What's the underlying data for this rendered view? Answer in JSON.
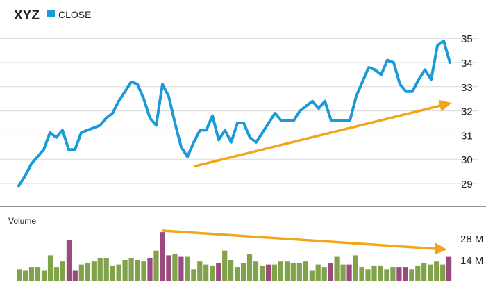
{
  "colors": {
    "close_line": "#1a9ad6",
    "volume_up": "#7fa24a",
    "volume_down": "#9a4a7c",
    "trend": "#f2a516",
    "grid": "#d9d9d9",
    "divider": "#555555",
    "text": "#222222"
  },
  "chart_data": [
    {
      "type": "line",
      "title": "XYZ",
      "legend": "top-left",
      "grid": true,
      "ylim": [
        28.3,
        35.4
      ],
      "y_ticks": [
        29,
        30,
        31,
        32,
        33,
        34,
        35
      ],
      "series": [
        {
          "name": "CLOSE",
          "color": "#1a9ad6",
          "values": [
            28.9,
            29.3,
            29.8,
            30.1,
            30.4,
            31.1,
            30.9,
            31.2,
            30.4,
            30.4,
            31.1,
            31.2,
            31.3,
            31.4,
            31.7,
            31.9,
            32.4,
            32.8,
            33.2,
            33.1,
            32.5,
            31.7,
            31.4,
            33.1,
            32.6,
            31.5,
            30.5,
            30.1,
            30.7,
            31.2,
            31.2,
            31.8,
            30.8,
            31.2,
            30.7,
            31.5,
            31.5,
            30.9,
            30.7,
            31.1,
            31.5,
            31.9,
            31.6,
            31.6,
            31.6,
            32.0,
            32.2,
            32.4,
            32.1,
            32.4,
            31.6,
            31.6,
            31.6,
            31.6,
            32.6,
            33.2,
            33.8,
            33.7,
            33.5,
            34.1,
            34.0,
            33.1,
            32.8,
            32.8,
            33.3,
            33.7,
            33.3,
            34.7,
            34.9,
            34.0
          ]
        }
      ],
      "trendline": {
        "from": [
          28,
          29.7
        ],
        "to": [
          69,
          32.3
        ]
      }
    },
    {
      "type": "bar",
      "title": "Volume",
      "y_ticks": [
        14,
        28
      ],
      "y_tick_labels": [
        "14 M",
        "28 M"
      ],
      "ylim": [
        0,
        40
      ],
      "values": [
        8,
        7,
        9,
        9,
        7,
        17,
        9,
        13,
        27,
        7,
        11,
        12,
        13,
        15,
        15,
        10,
        11,
        14,
        15,
        14,
        13,
        15,
        20,
        32,
        17,
        18,
        16,
        16,
        8,
        13,
        11,
        10,
        12,
        20,
        14,
        9,
        12,
        18,
        13,
        10,
        11,
        11,
        13,
        13,
        12,
        12,
        13,
        7,
        11,
        9,
        12,
        16,
        11,
        11,
        17,
        9,
        8,
        10,
        10,
        8,
        9,
        9,
        9,
        8,
        10,
        12,
        11,
        13,
        11,
        16
      ],
      "colors_by_bar": [
        "up",
        "up",
        "up",
        "up",
        "up",
        "up",
        "up",
        "up",
        "down",
        "down",
        "up",
        "up",
        "up",
        "up",
        "up",
        "up",
        "up",
        "up",
        "up",
        "up",
        "up",
        "down",
        "up",
        "down",
        "down",
        "up",
        "down",
        "up",
        "up",
        "up",
        "up",
        "up",
        "down",
        "up",
        "up",
        "up",
        "up",
        "up",
        "up",
        "up",
        "down",
        "up",
        "up",
        "up",
        "up",
        "up",
        "up",
        "up",
        "up",
        "up",
        "down",
        "up",
        "up",
        "down",
        "up",
        "up",
        "up",
        "up",
        "up",
        "up",
        "up",
        "down",
        "down",
        "up",
        "up",
        "up",
        "up",
        "up",
        "up",
        "down"
      ],
      "trendline": {
        "from": [
          23,
          33
        ],
        "to": [
          69,
          21
        ]
      }
    }
  ]
}
